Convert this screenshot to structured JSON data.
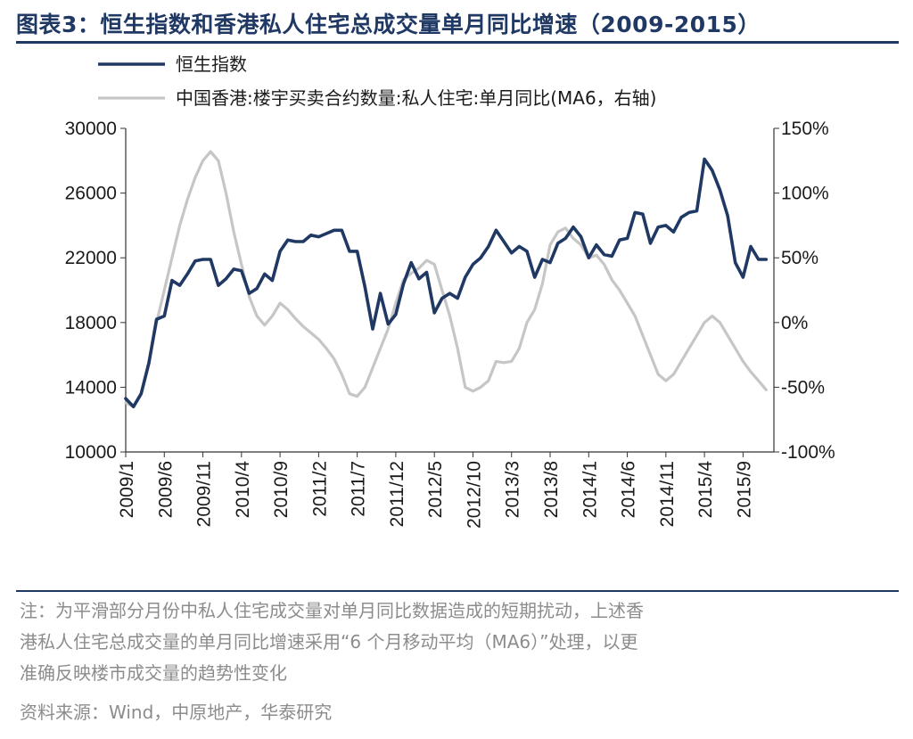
{
  "title": "图表3：恒生指数和香港私人住宅总成交量单月同比增速（2009-2015）",
  "note_lines": [
    "注：为平滑部分月份中私人住宅成交量对单月同比数据造成的短期扰动，上述香",
    "港私人住宅总成交量的单月同比增速采用“6 个月移动平均（MA6）”处理，以更",
    "准确反映楼市成交量的趋势性变化"
  ],
  "source": "资料来源：Wind，中原地产，华泰研究",
  "chart_data": {
    "type": "line",
    "title": "图表3：恒生指数和香港私人住宅总成交量单月同比增速（2009-2015）",
    "x_tick_labels": [
      "2009/1",
      "2009/6",
      "2009/11",
      "2010/4",
      "2010/9",
      "2011/2",
      "2011/7",
      "2011/12",
      "2012/5",
      "2012/10",
      "2013/3",
      "2013/8",
      "2014/1",
      "2014/6",
      "2014/11",
      "2015/4",
      "2015/9"
    ],
    "x_range": [
      "2009/1",
      "2016/1"
    ],
    "y_left": {
      "min": 10000,
      "max": 30000,
      "ticks": [
        10000,
        14000,
        18000,
        22000,
        26000,
        30000
      ]
    },
    "y_right": {
      "min": -100,
      "max": 150,
      "ticks": [
        -100,
        -50,
        0,
        50,
        100,
        150
      ],
      "tick_labels": [
        "-100%",
        "-50%",
        "0%",
        "50%",
        "100%",
        "150%"
      ]
    },
    "grid": false,
    "legend_position": "top-left",
    "series": [
      {
        "name": "恒生指数",
        "axis": "left",
        "color": "#1f3864",
        "points": [
          [
            "2009/1",
            13300
          ],
          [
            "2009/2",
            12800
          ],
          [
            "2009/3",
            13600
          ],
          [
            "2009/4",
            15500
          ],
          [
            "2009/5",
            18200
          ],
          [
            "2009/6",
            18400
          ],
          [
            "2009/7",
            20600
          ],
          [
            "2009/8",
            20300
          ],
          [
            "2009/9",
            21000
          ],
          [
            "2009/10",
            21800
          ],
          [
            "2009/11",
            21900
          ],
          [
            "2009/12",
            21900
          ],
          [
            "2010/1",
            20300
          ],
          [
            "2010/2",
            20700
          ],
          [
            "2010/3",
            21300
          ],
          [
            "2010/4",
            21200
          ],
          [
            "2010/5",
            19800
          ],
          [
            "2010/6",
            20100
          ],
          [
            "2010/7",
            21000
          ],
          [
            "2010/8",
            20600
          ],
          [
            "2010/9",
            22400
          ],
          [
            "2010/10",
            23100
          ],
          [
            "2010/11",
            23000
          ],
          [
            "2010/12",
            23000
          ],
          [
            "2011/1",
            23400
          ],
          [
            "2011/2",
            23300
          ],
          [
            "2011/3",
            23500
          ],
          [
            "2011/4",
            23700
          ],
          [
            "2011/5",
            23700
          ],
          [
            "2011/6",
            22400
          ],
          [
            "2011/7",
            22400
          ],
          [
            "2011/8",
            20200
          ],
          [
            "2011/9",
            17600
          ],
          [
            "2011/10",
            19800
          ],
          [
            "2011/11",
            17900
          ],
          [
            "2011/12",
            18500
          ],
          [
            "2012/1",
            20400
          ],
          [
            "2012/2",
            21700
          ],
          [
            "2012/3",
            20700
          ],
          [
            "2012/4",
            21100
          ],
          [
            "2012/5",
            18600
          ],
          [
            "2012/6",
            19500
          ],
          [
            "2012/7",
            19800
          ],
          [
            "2012/8",
            19500
          ],
          [
            "2012/9",
            20800
          ],
          [
            "2012/10",
            21600
          ],
          [
            "2012/11",
            22000
          ],
          [
            "2012/12",
            22700
          ],
          [
            "2013/1",
            23700
          ],
          [
            "2013/2",
            23000
          ],
          [
            "2013/3",
            22300
          ],
          [
            "2013/4",
            22700
          ],
          [
            "2013/5",
            22400
          ],
          [
            "2013/6",
            20800
          ],
          [
            "2013/7",
            21900
          ],
          [
            "2013/8",
            21700
          ],
          [
            "2013/9",
            22900
          ],
          [
            "2013/10",
            23200
          ],
          [
            "2013/11",
            23900
          ],
          [
            "2013/12",
            23300
          ],
          [
            "2014/1",
            22000
          ],
          [
            "2014/2",
            22800
          ],
          [
            "2014/3",
            22200
          ],
          [
            "2014/4",
            22100
          ],
          [
            "2014/5",
            23100
          ],
          [
            "2014/6",
            23200
          ],
          [
            "2014/7",
            24800
          ],
          [
            "2014/8",
            24700
          ],
          [
            "2014/9",
            22900
          ],
          [
            "2014/10",
            23900
          ],
          [
            "2014/11",
            24000
          ],
          [
            "2014/12",
            23600
          ],
          [
            "2015/1",
            24500
          ],
          [
            "2015/2",
            24800
          ],
          [
            "2015/3",
            24900
          ],
          [
            "2015/4",
            28100
          ],
          [
            "2015/5",
            27400
          ],
          [
            "2015/6",
            26200
          ],
          [
            "2015/7",
            24600
          ],
          [
            "2015/8",
            21700
          ],
          [
            "2015/9",
            20800
          ],
          [
            "2015/10",
            22700
          ],
          [
            "2015/11",
            21900
          ],
          [
            "2015/12",
            21900
          ]
        ]
      },
      {
        "name": "中国香港:楼宇买卖合约数量:私人住宅:单月同比(MA6，右轴)",
        "axis": "right",
        "color": "#c6c6c6",
        "points": [
          [
            "2009/1",
            -62
          ],
          [
            "2009/2",
            -65
          ],
          [
            "2009/3",
            -55
          ],
          [
            "2009/4",
            -30
          ],
          [
            "2009/5",
            0
          ],
          [
            "2009/6",
            25
          ],
          [
            "2009/7",
            50
          ],
          [
            "2009/8",
            75
          ],
          [
            "2009/9",
            95
          ],
          [
            "2009/10",
            112
          ],
          [
            "2009/11",
            125
          ],
          [
            "2009/12",
            132
          ],
          [
            "2010/1",
            125
          ],
          [
            "2010/2",
            100
          ],
          [
            "2010/3",
            70
          ],
          [
            "2010/4",
            45
          ],
          [
            "2010/5",
            20
          ],
          [
            "2010/6",
            5
          ],
          [
            "2010/7",
            -2
          ],
          [
            "2010/8",
            5
          ],
          [
            "2010/9",
            15
          ],
          [
            "2010/10",
            10
          ],
          [
            "2010/11",
            3
          ],
          [
            "2010/12",
            -3
          ],
          [
            "2011/1",
            -8
          ],
          [
            "2011/2",
            -13
          ],
          [
            "2011/3",
            -20
          ],
          [
            "2011/4",
            -28
          ],
          [
            "2011/5",
            -40
          ],
          [
            "2011/6",
            -55
          ],
          [
            "2011/7",
            -57
          ],
          [
            "2011/8",
            -50
          ],
          [
            "2011/9",
            -35
          ],
          [
            "2011/10",
            -20
          ],
          [
            "2011/11",
            -5
          ],
          [
            "2011/12",
            15
          ],
          [
            "2012/1",
            33
          ],
          [
            "2012/2",
            38
          ],
          [
            "2012/3",
            42
          ],
          [
            "2012/4",
            48
          ],
          [
            "2012/5",
            45
          ],
          [
            "2012/6",
            25
          ],
          [
            "2012/7",
            5
          ],
          [
            "2012/8",
            -20
          ],
          [
            "2012/9",
            -50
          ],
          [
            "2012/10",
            -53
          ],
          [
            "2012/11",
            -50
          ],
          [
            "2012/12",
            -45
          ],
          [
            "2013/1",
            -30
          ],
          [
            "2013/2",
            -31
          ],
          [
            "2013/3",
            -30
          ],
          [
            "2013/4",
            -20
          ],
          [
            "2013/5",
            0
          ],
          [
            "2013/6",
            10
          ],
          [
            "2013/7",
            30
          ],
          [
            "2013/8",
            60
          ],
          [
            "2013/9",
            70
          ],
          [
            "2013/10",
            73
          ],
          [
            "2013/11",
            65
          ],
          [
            "2013/12",
            60
          ],
          [
            "2014/1",
            50
          ],
          [
            "2014/2",
            52
          ],
          [
            "2014/3",
            45
          ],
          [
            "2014/4",
            33
          ],
          [
            "2014/5",
            25
          ],
          [
            "2014/6",
            15
          ],
          [
            "2014/7",
            5
          ],
          [
            "2014/8",
            -10
          ],
          [
            "2014/9",
            -25
          ],
          [
            "2014/10",
            -40
          ],
          [
            "2014/11",
            -45
          ],
          [
            "2014/12",
            -40
          ],
          [
            "2015/1",
            -30
          ],
          [
            "2015/2",
            -20
          ],
          [
            "2015/3",
            -10
          ],
          [
            "2015/4",
            0
          ],
          [
            "2015/5",
            5
          ],
          [
            "2015/6",
            0
          ],
          [
            "2015/7",
            -10
          ],
          [
            "2015/8",
            -20
          ],
          [
            "2015/9",
            -30
          ],
          [
            "2015/10",
            -38
          ],
          [
            "2015/11",
            -45
          ],
          [
            "2015/12",
            -52
          ]
        ]
      }
    ]
  }
}
